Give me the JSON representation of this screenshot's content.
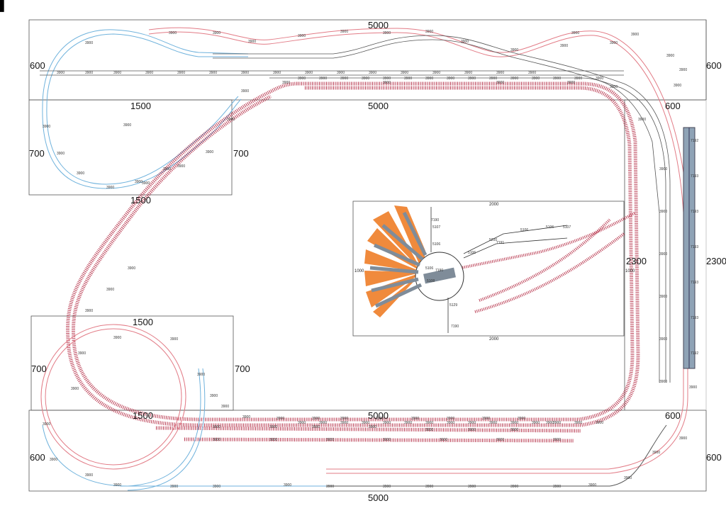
{
  "colors": {
    "blue_track": "#6fb2dc",
    "red_track": "#e27b86",
    "dark_track": "#555555",
    "main_line": "#b0203a",
    "fan_orange": "#f08a3c",
    "stall_gray": "#7f8c99",
    "frame": "#444444"
  },
  "corner_mark": "▌",
  "board_dimensions": {
    "top_width": "5000",
    "mid_width": "5000",
    "lower_width": "5000",
    "bottom_width": "5000",
    "right_height": "2300",
    "right_height_outer": "2300",
    "right_depth_top": "600",
    "right_depth_mid": "600",
    "right_depth_lower": "600",
    "right_depth_bottom": "600",
    "left_depth_top": "600",
    "left_depth_bottom": "600",
    "module_top_left_width_top": "1500",
    "module_top_left_width_bottom": "1500",
    "module_top_left_left": "700",
    "module_top_left_right": "700",
    "module_bottom_left_width_top": "1500",
    "module_bottom_left_width_bottom": "1500",
    "module_bottom_left_left": "700",
    "module_bottom_left_right": "700"
  },
  "turntable": {
    "top_label": "2000",
    "bottom_label": "2000",
    "left_label": "1000",
    "right_label": "1000",
    "center_label": "7190",
    "track_labels": [
      "7190",
      "5107",
      "5106",
      "5106",
      "5107",
      "7191",
      "5200",
      "5106",
      "5106",
      "5106",
      "5108",
      "5129",
      "7190"
    ]
  },
  "piece_label": "3900",
  "station_labels": [
    "7192",
    "7193",
    "7193",
    "7193",
    "7193",
    "7193",
    "7192"
  ],
  "straight_labels": [
    "3900",
    "3900",
    "3900",
    "3900",
    "3900",
    "3900",
    "3900",
    "3900",
    "3900",
    "3900",
    "3900",
    "3900",
    "3900",
    "3900",
    "3900",
    "3900",
    "3900",
    "3900",
    "3900",
    "3900",
    "3900",
    "3900",
    "3900",
    "3900",
    "3900",
    "3900",
    "3900",
    "3900",
    "3900",
    "3900"
  ]
}
